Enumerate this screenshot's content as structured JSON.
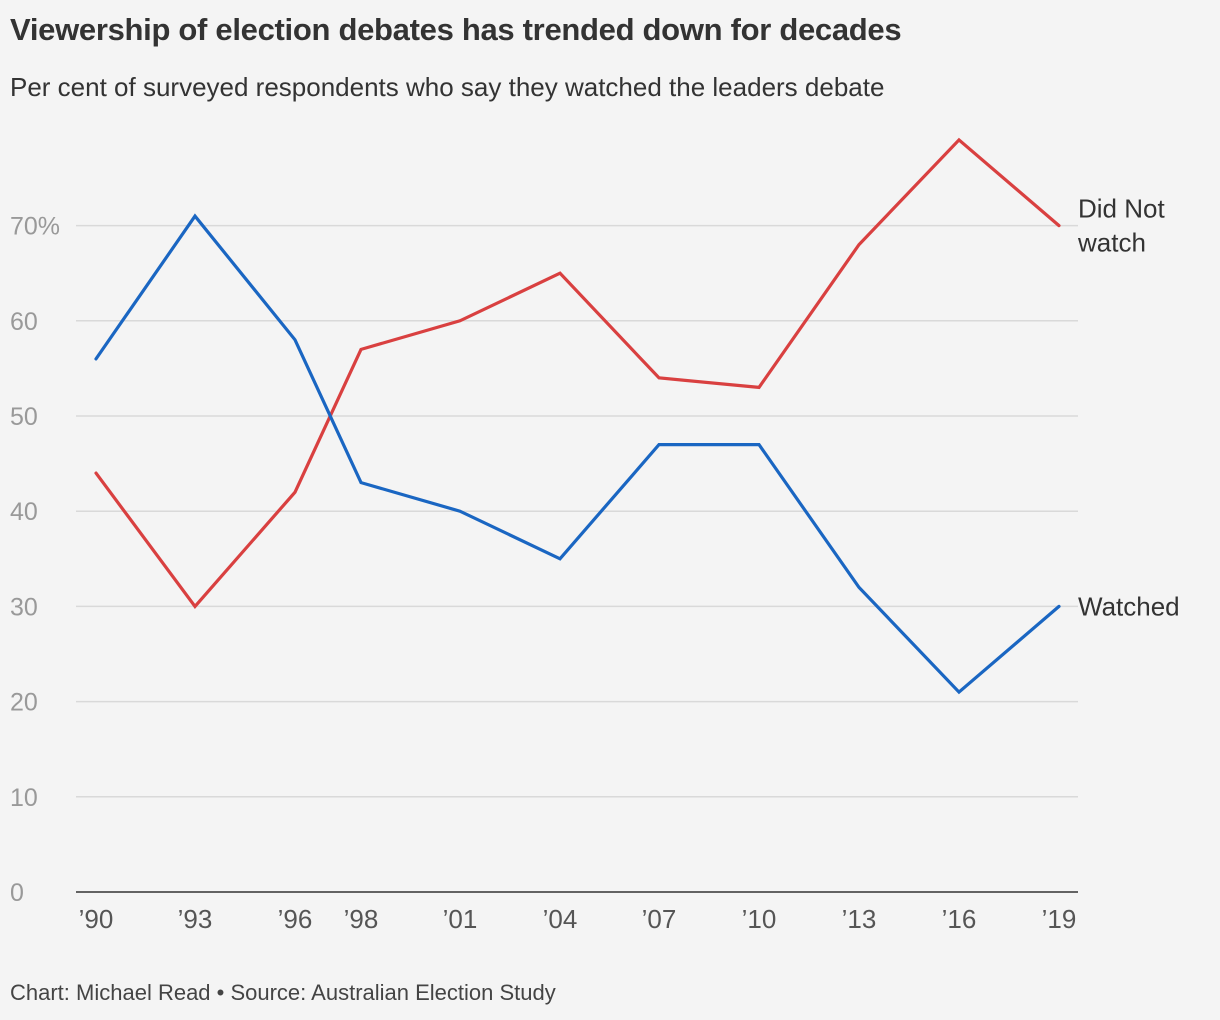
{
  "chart_data": {
    "type": "line",
    "title": "Viewership of election debates has trended down for decades",
    "subtitle": "Per cent of surveyed respondents who say they watched the leaders debate",
    "credit": "Chart: Michael Read • Source: Australian Election Study",
    "categories": [
      "’90",
      "’93",
      "’96",
      "’98",
      "’01",
      "’04",
      "’07",
      "’10",
      "’13",
      "’16",
      "’19"
    ],
    "yticks": [
      "0",
      "10",
      "20",
      "30",
      "40",
      "50",
      "60",
      "70%"
    ],
    "ylim": [
      0,
      70
    ],
    "grid": true,
    "series": [
      {
        "name": "Did Not watch",
        "label_lines": [
          "Did Not",
          "watch"
        ],
        "color": "#d94040",
        "values": [
          44,
          30,
          42,
          57,
          60,
          65,
          54,
          53,
          68,
          79,
          70
        ]
      },
      {
        "name": "Watched",
        "label_lines": [
          "Watched"
        ],
        "color": "#1a66c2",
        "values": [
          56,
          71,
          58,
          43,
          40,
          35,
          47,
          47,
          32,
          21,
          30
        ]
      }
    ]
  }
}
